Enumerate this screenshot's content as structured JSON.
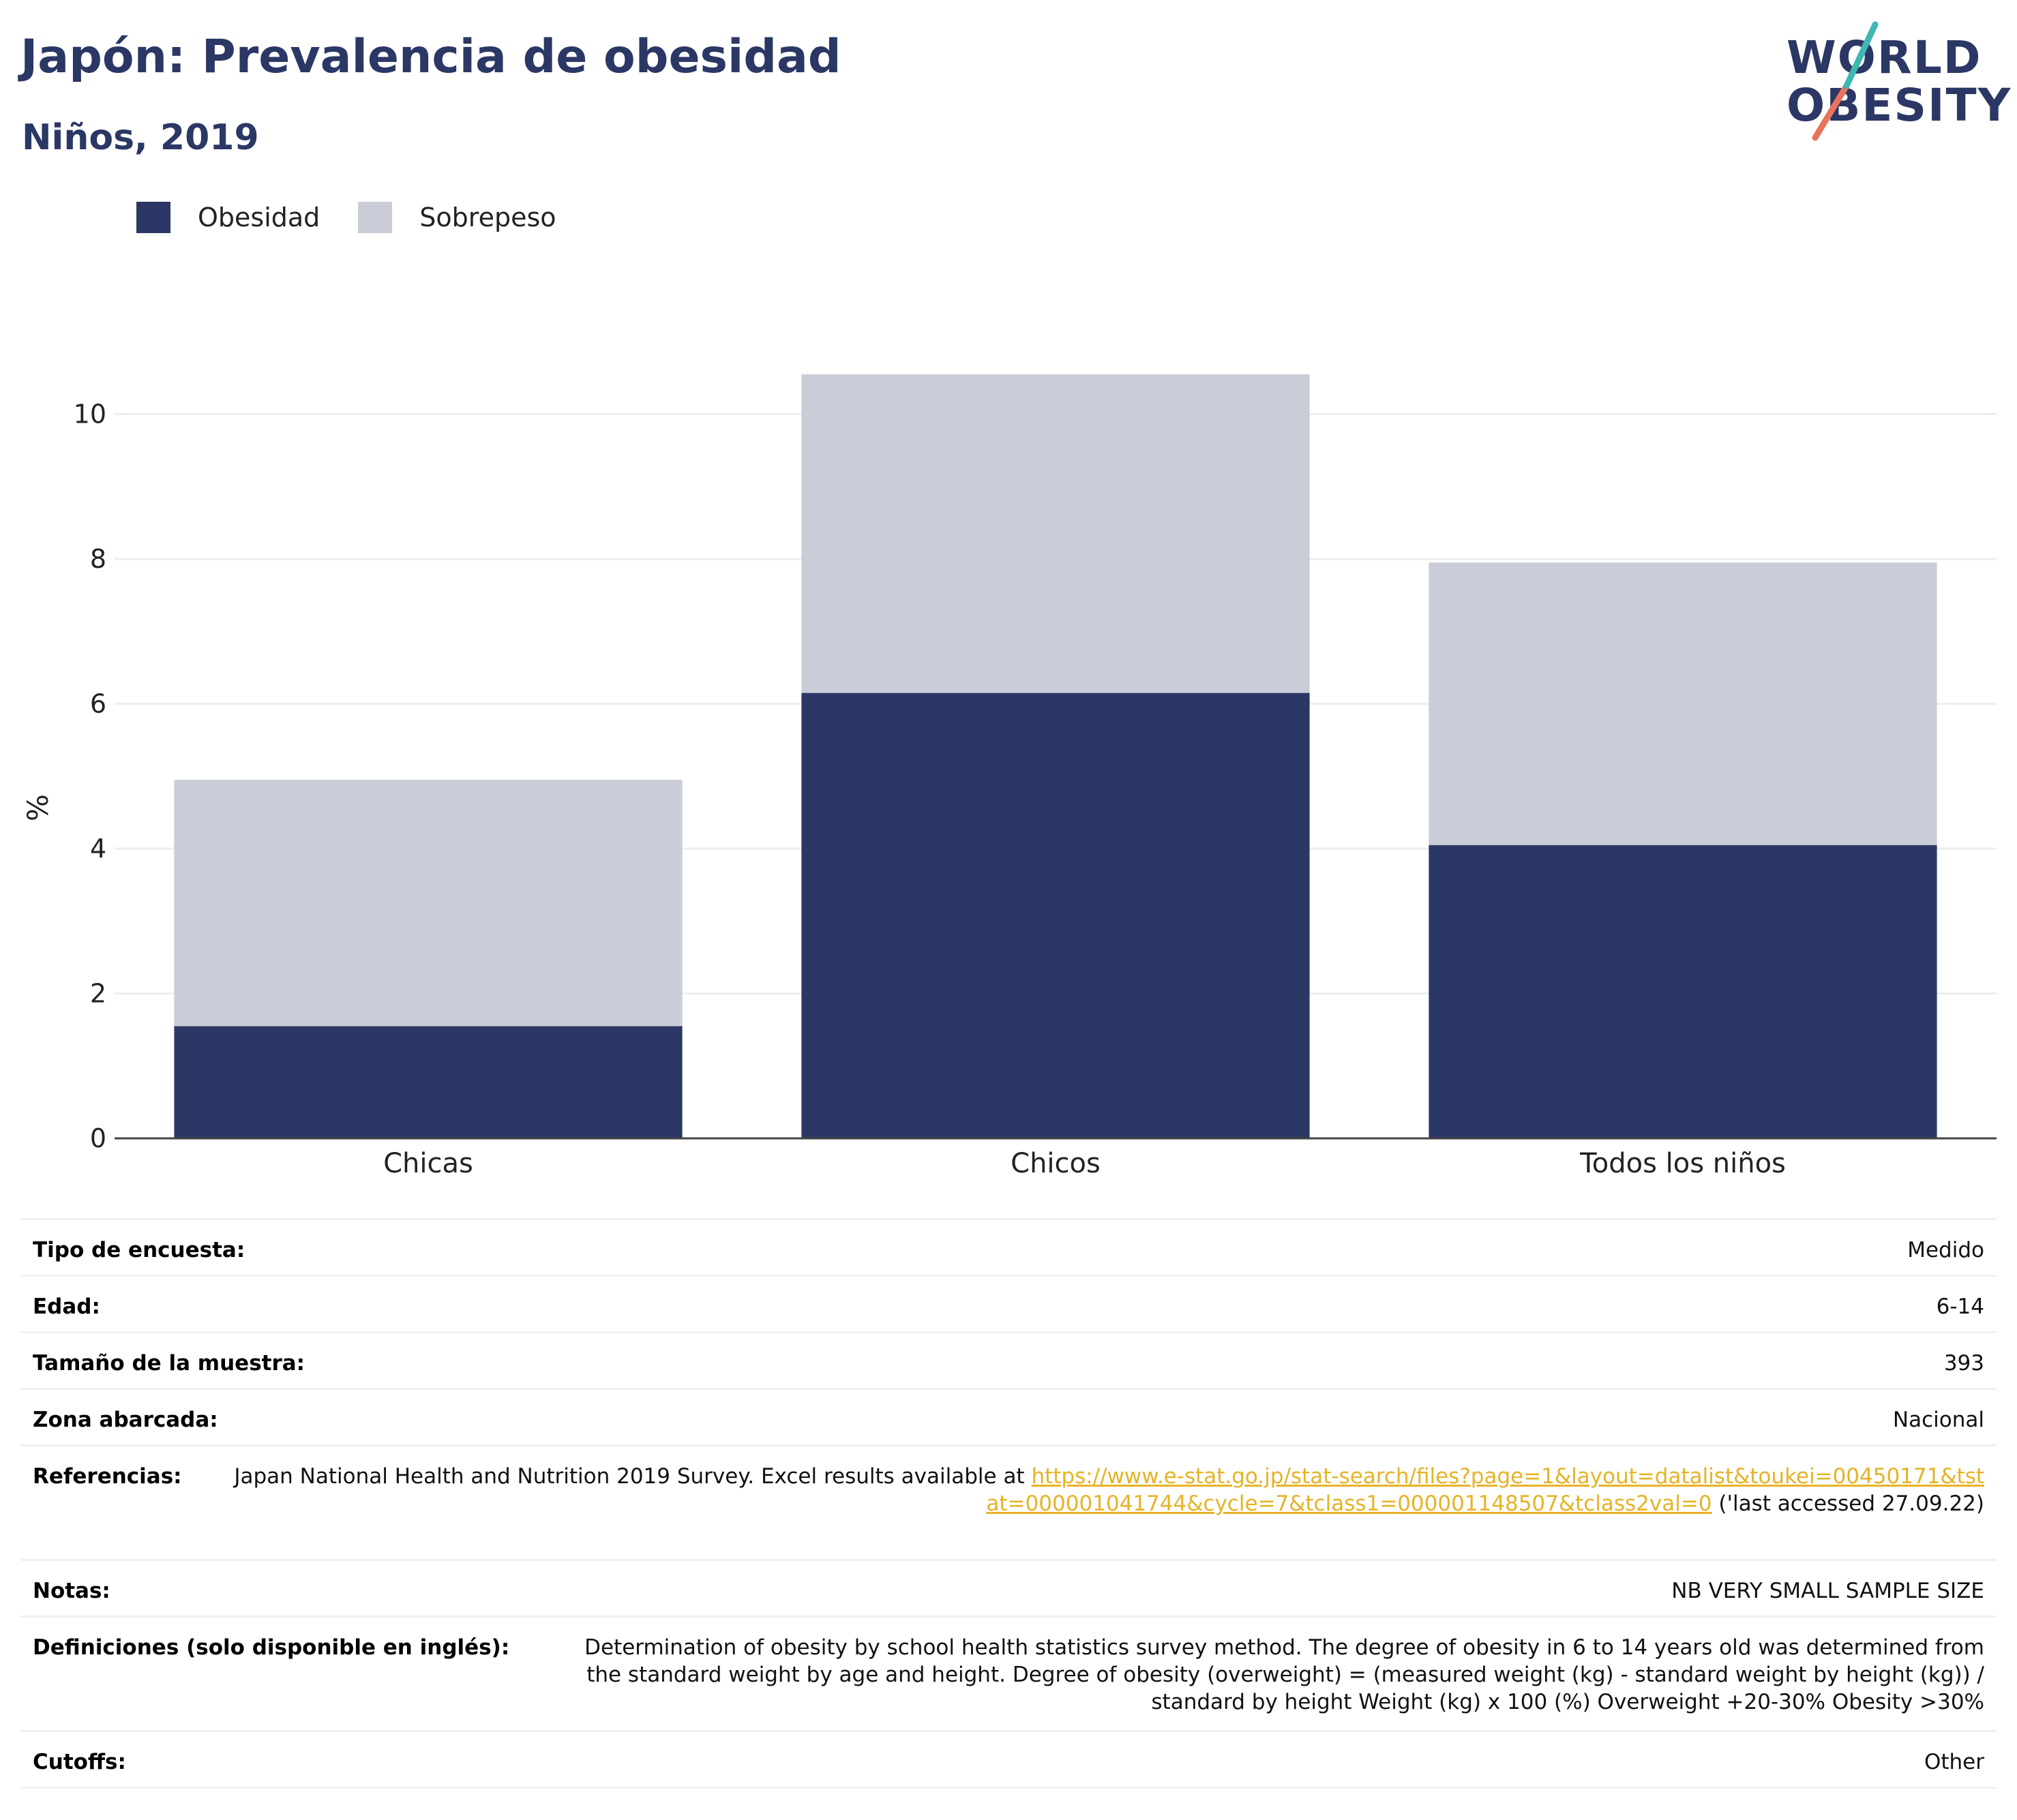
{
  "header": {
    "title": "Japón: Prevalencia de obesidad",
    "subtitle": "Niños, 2019"
  },
  "logo": {
    "line1": "WORLD",
    "line2": "OBESITY",
    "colors": {
      "text": "#2b3764",
      "slash_red": "#e8735c",
      "slash_teal": "#3fb7b3"
    }
  },
  "chart_data": {
    "type": "bar",
    "stacked": true,
    "categories": [
      "Chicas",
      "Chicos",
      "Todos los niños"
    ],
    "series": [
      {
        "name": "Obesidad",
        "values": [
          1.55,
          6.15,
          4.05
        ],
        "color": "#2b3764"
      },
      {
        "name": "Sobrepeso",
        "values": [
          3.4,
          4.4,
          3.9
        ],
        "color": "#cacdd8"
      }
    ],
    "ylabel": "%",
    "ylim": [
      0,
      11.2
    ],
    "yticks": [
      0,
      2,
      4,
      6,
      8,
      10
    ],
    "grid": true,
    "legend_position": "top-left"
  },
  "info": {
    "rows": [
      {
        "label": "Tipo de encuesta:",
        "value": "Medido"
      },
      {
        "label": "Edad:",
        "value": "6-14"
      },
      {
        "label": "Tamaño de la muestra:",
        "value": "393"
      },
      {
        "label": "Zona abarcada:",
        "value": "Nacional"
      },
      {
        "label": "Referencias:",
        "value_prefix": "Japan National Health and Nutrition 2019 Survey. Excel results available at ",
        "link": "https://www.e-stat.go.jp/stat-search/files?page=1&layout=datalist&toukei=00450171&tstat=000001041744&cycle=7&tclass1=000001148507&tclass2val=0",
        "value_suffix": " ('last accessed 27.09.22)"
      },
      {
        "label": "Notas:",
        "value": "NB VERY SMALL SAMPLE SIZE"
      },
      {
        "label": "Definiciones (solo disponible en inglés):",
        "value": "Determination of obesity by school health statistics survey method. The degree of obesity in 6 to 14 years old was determined from the standard weight by age and height. Degree of obesity (overweight) = (measured weight (kg) - standard weight by height (kg)) / standard by height Weight (kg) x 100 (%) Overweight +20-30% Obesity >30%"
      },
      {
        "label": "Cutoffs:",
        "value": "Other"
      }
    ]
  }
}
